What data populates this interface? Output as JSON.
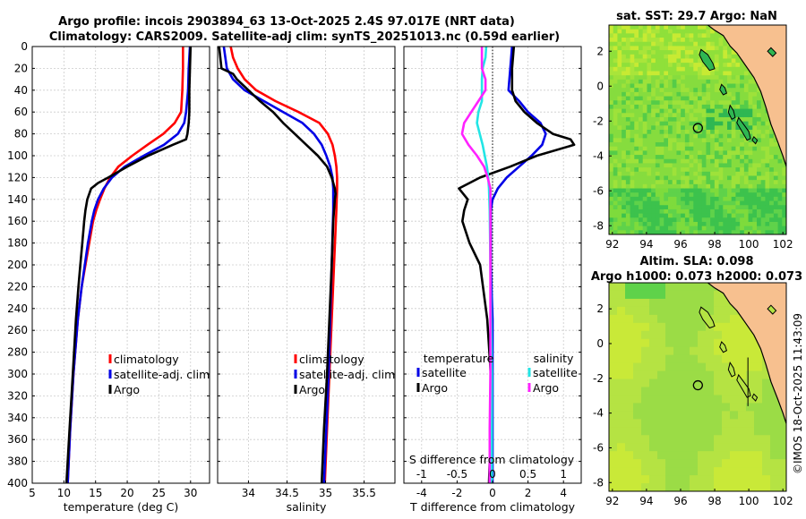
{
  "header": {
    "title_line1": "Argo profile: incois 2903894_63 13-Oct-2025 2.4S 97.017E (NRT data)",
    "title_line2": "Climatology: CARS2009. Satellite-adj clim: synTS_20251013.nc (0.59d earlier)",
    "watermark": "©IMOS 18-Oct-2025 11:43:09"
  },
  "colors": {
    "climatology": "#ff0000",
    "satellite": "#0000e6",
    "argo": "#000000",
    "sal_satellite": "#22e5e5",
    "sal_argo": "#ff22ff",
    "land": "#f7c08f",
    "grid": "#cccccc"
  },
  "chart_data": [
    {
      "id": "temperature",
      "type": "line",
      "xlabel": "temperature (deg C)",
      "ylabel": "",
      "xlim": [
        5,
        33
      ],
      "ylim": [
        400,
        0
      ],
      "x_ticks": [
        5,
        10,
        15,
        20,
        25,
        30
      ],
      "y_ticks": [
        0,
        20,
        40,
        60,
        80,
        100,
        120,
        140,
        160,
        180,
        200,
        220,
        240,
        260,
        280,
        300,
        320,
        340,
        360,
        380,
        400
      ],
      "legend": [
        "climatology",
        "satellite-adj. clim",
        "Argo"
      ],
      "series": [
        {
          "name": "climatology",
          "color": "#ff0000",
          "depth": [
            0,
            20,
            40,
            60,
            70,
            80,
            90,
            100,
            110,
            120,
            130,
            140,
            150,
            160,
            180,
            200,
            220,
            250,
            300,
            350,
            400
          ],
          "values": [
            28.8,
            28.8,
            28.7,
            28.5,
            27.5,
            25.7,
            23.2,
            20.8,
            18.6,
            17.3,
            16.4,
            15.7,
            15.1,
            14.6,
            14.0,
            13.4,
            12.8,
            12.2,
            11.5,
            11.0,
            10.6
          ]
        },
        {
          "name": "satellite-adj. clim",
          "color": "#0000e6",
          "depth": [
            0,
            20,
            40,
            60,
            70,
            80,
            90,
            100,
            110,
            120,
            130,
            140,
            150,
            160,
            180,
            200,
            220,
            250,
            300,
            350,
            400
          ],
          "values": [
            29.9,
            29.7,
            29.6,
            29.3,
            29.0,
            28.0,
            25.8,
            22.6,
            19.6,
            17.6,
            16.3,
            15.4,
            14.8,
            14.4,
            13.8,
            13.3,
            12.8,
            12.2,
            11.5,
            11.0,
            10.6
          ]
        },
        {
          "name": "Argo",
          "color": "#000000",
          "depth": [
            0,
            20,
            40,
            60,
            70,
            80,
            85,
            90,
            100,
            110,
            120,
            125,
            130,
            140,
            150,
            160,
            180,
            200,
            220,
            250,
            300,
            350,
            400
          ],
          "values": [
            30.0,
            29.9,
            29.8,
            29.8,
            29.7,
            29.5,
            29.3,
            27.2,
            23.3,
            20.0,
            17.0,
            15.4,
            14.3,
            13.7,
            13.4,
            13.2,
            12.9,
            12.6,
            12.3,
            11.9,
            11.4,
            10.9,
            10.4
          ]
        }
      ]
    },
    {
      "id": "salinity",
      "type": "line",
      "xlabel": "salinity",
      "xlim": [
        33.6,
        35.9
      ],
      "ylim": [
        400,
        0
      ],
      "x_ticks": [
        34,
        34.5,
        35,
        35.5
      ],
      "legend": [
        "climatology",
        "satellite-adj. clim",
        "Argo"
      ],
      "series": [
        {
          "name": "climatology",
          "color": "#ff0000",
          "depth": [
            0,
            10,
            20,
            30,
            40,
            50,
            60,
            70,
            80,
            90,
            100,
            110,
            120,
            130,
            150,
            200,
            250,
            300,
            350,
            400
          ],
          "values": [
            33.77,
            33.8,
            33.86,
            33.95,
            34.1,
            34.35,
            34.65,
            34.92,
            35.03,
            35.09,
            35.12,
            35.14,
            35.15,
            35.15,
            35.14,
            35.11,
            35.08,
            35.05,
            35.02,
            34.99
          ]
        },
        {
          "name": "satellite-adj. clim",
          "color": "#0000e6",
          "depth": [
            0,
            10,
            20,
            30,
            40,
            50,
            60,
            70,
            80,
            90,
            100,
            110,
            120,
            130,
            150,
            200,
            250,
            300,
            350,
            400
          ],
          "values": [
            33.68,
            33.7,
            33.72,
            33.8,
            33.95,
            34.2,
            34.45,
            34.7,
            34.85,
            34.95,
            35.01,
            35.06,
            35.09,
            35.1,
            35.1,
            35.08,
            35.06,
            35.04,
            35.01,
            34.98
          ]
        },
        {
          "name": "Argo",
          "color": "#000000",
          "depth": [
            0,
            20,
            25,
            30,
            40,
            50,
            60,
            70,
            80,
            90,
            100,
            110,
            120,
            130,
            135,
            140,
            160,
            200,
            250,
            300,
            350,
            400
          ],
          "values": [
            33.62,
            33.65,
            33.8,
            33.85,
            34.0,
            34.15,
            34.32,
            34.45,
            34.6,
            34.75,
            34.9,
            35.02,
            35.08,
            35.12,
            35.13,
            35.12,
            35.1,
            35.08,
            35.05,
            35.02,
            34.98,
            34.95
          ]
        }
      ]
    },
    {
      "id": "difference",
      "type": "line",
      "xlabel": "T difference from climatology",
      "x2label": "S difference from climatology",
      "xlim": [
        -5,
        5
      ],
      "x2lim": [
        -1.25,
        1.25
      ],
      "ylim": [
        400,
        0
      ],
      "x_ticks": [
        -4,
        -2,
        0,
        2,
        4
      ],
      "x2_ticks": [
        -1,
        -0.5,
        0,
        0.5,
        1
      ],
      "x2_tick_labels": [
        "-1",
        "-0.5",
        "0",
        "0.5",
        "1"
      ],
      "legend_title_left": "temperature",
      "legend_title_right": "salinity",
      "legend_left": [
        "satellite",
        "Argo"
      ],
      "legend_right": [
        "satellite",
        "Argo"
      ],
      "series": [
        {
          "name": "temperature satellite",
          "color": "#0000e6",
          "axis": "T",
          "depth": [
            0,
            20,
            40,
            50,
            60,
            70,
            80,
            90,
            100,
            110,
            120,
            130,
            140,
            150,
            160,
            200,
            250,
            300,
            350,
            400
          ],
          "values": [
            1.1,
            1.0,
            0.9,
            1.5,
            2.0,
            2.7,
            3.0,
            2.8,
            2.2,
            1.5,
            0.8,
            0.3,
            0.0,
            -0.1,
            -0.1,
            -0.1,
            0.0,
            0.0,
            0.0,
            0.0
          ]
        },
        {
          "name": "temperature Argo",
          "color": "#000000",
          "axis": "T",
          "depth": [
            0,
            20,
            40,
            50,
            60,
            70,
            80,
            85,
            90,
            100,
            110,
            120,
            130,
            140,
            150,
            160,
            180,
            200,
            250,
            300,
            350,
            400
          ],
          "values": [
            1.2,
            1.1,
            1.1,
            1.3,
            1.8,
            2.5,
            3.4,
            4.4,
            4.6,
            2.5,
            1.0,
            -0.7,
            -1.9,
            -1.4,
            -1.6,
            -1.7,
            -1.3,
            -0.7,
            -0.3,
            -0.1,
            -0.1,
            -0.2
          ]
        },
        {
          "name": "salinity satellite",
          "color": "#22e5e5",
          "axis": "S",
          "depth": [
            0,
            10,
            20,
            30,
            40,
            50,
            60,
            70,
            80,
            90,
            100,
            110,
            120,
            130,
            150,
            200,
            250,
            300,
            350,
            400
          ],
          "values": [
            -0.09,
            -0.1,
            -0.14,
            -0.15,
            -0.15,
            -0.15,
            -0.2,
            -0.22,
            -0.18,
            -0.14,
            -0.11,
            -0.08,
            -0.06,
            -0.05,
            -0.04,
            -0.03,
            -0.02,
            -0.01,
            -0.01,
            -0.01
          ]
        },
        {
          "name": "salinity Argo",
          "color": "#ff22ff",
          "axis": "S",
          "depth": [
            0,
            20,
            30,
            40,
            50,
            60,
            70,
            80,
            90,
            100,
            110,
            120,
            130,
            140,
            150,
            200,
            250,
            300,
            350,
            400
          ],
          "values": [
            -0.15,
            -0.15,
            -0.1,
            -0.1,
            -0.2,
            -0.3,
            -0.4,
            -0.43,
            -0.34,
            -0.22,
            -0.12,
            -0.07,
            -0.03,
            -0.03,
            -0.03,
            -0.03,
            -0.03,
            -0.03,
            -0.04,
            -0.04
          ]
        }
      ]
    },
    {
      "id": "sst_map",
      "type": "heatmap",
      "title": "sat. SST: 29.7 Argo: NaN",
      "xlim": [
        91.8,
        102.2
      ],
      "ylim": [
        -8.5,
        3.5
      ],
      "x_ticks": [
        92,
        94,
        96,
        98,
        100,
        102
      ],
      "y_ticks": [
        -8,
        -6,
        -4,
        -2,
        0,
        2
      ],
      "argo_position": {
        "lon": 97.017,
        "lat": -2.4
      }
    },
    {
      "id": "sla_map",
      "type": "heatmap",
      "title": "Altim. SLA: 0.098",
      "subtitle": "Argo h1000: 0.073 h2000: 0.073",
      "xlim": [
        91.8,
        102.2
      ],
      "ylim": [
        -8.5,
        3.5
      ],
      "x_ticks": [
        92,
        94,
        96,
        98,
        100,
        102
      ],
      "y_ticks": [
        -8,
        -6,
        -4,
        -2,
        0,
        2
      ],
      "argo_position": {
        "lon": 97.017,
        "lat": -2.4
      }
    }
  ]
}
